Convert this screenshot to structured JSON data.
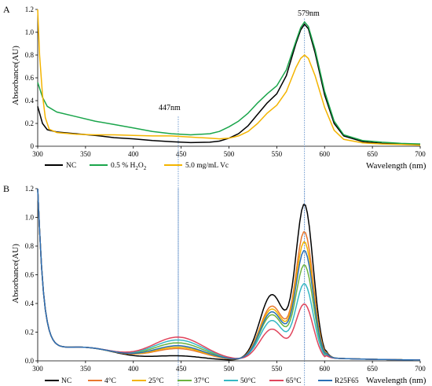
{
  "chart_data": [
    {
      "panel_label": "A",
      "type": "line",
      "xlabel": "Wavelength (nm)",
      "ylabel": "Absorbance(AU)",
      "xlim": [
        300,
        700
      ],
      "ylim": [
        0,
        1.2
      ],
      "xticks": [
        "300",
        "350",
        "400",
        "450",
        "500",
        "550",
        "600",
        "650",
        "700"
      ],
      "yticks": [
        "0",
        "0.2",
        "0.4",
        "0.6",
        "0.8",
        "1.0",
        "1.2"
      ],
      "grid": false,
      "legend_position": "bottom-left",
      "annotations": [
        {
          "text": "447nm",
          "x": 447,
          "y": 0.3
        },
        {
          "text": "579nm",
          "x": 579,
          "y": 1.14
        }
      ],
      "vlines": [
        447,
        579
      ],
      "series": [
        {
          "name": "NC",
          "legend_main": "NC",
          "legend_sub": "",
          "legend_tail": "",
          "color": "#000000",
          "points": [
            [
              300,
              0.35
            ],
            [
              305,
              0.2
            ],
            [
              310,
              0.145
            ],
            [
              320,
              0.125
            ],
            [
              340,
              0.11
            ],
            [
              360,
              0.095
            ],
            [
              380,
              0.075
            ],
            [
              400,
              0.065
            ],
            [
              420,
              0.05
            ],
            [
              440,
              0.04
            ],
            [
              460,
              0.032
            ],
            [
              480,
              0.035
            ],
            [
              490,
              0.045
            ],
            [
              500,
              0.07
            ],
            [
              510,
              0.11
            ],
            [
              520,
              0.18
            ],
            [
              530,
              0.28
            ],
            [
              540,
              0.38
            ],
            [
              550,
              0.46
            ],
            [
              560,
              0.62
            ],
            [
              570,
              0.9
            ],
            [
              575,
              1.02
            ],
            [
              579,
              1.07
            ],
            [
              583,
              1.03
            ],
            [
              590,
              0.82
            ],
            [
              600,
              0.45
            ],
            [
              610,
              0.2
            ],
            [
              620,
              0.09
            ],
            [
              640,
              0.04
            ],
            [
              660,
              0.025
            ],
            [
              680,
              0.02
            ],
            [
              700,
              0.015
            ]
          ]
        },
        {
          "name": "0.5 % H2O2",
          "legend_main": "0.5 %  H",
          "legend_sub": "2",
          "legend_tail": "O",
          "legend_sub2": "2",
          "color": "#1aa54b",
          "points": [
            [
              300,
              0.56
            ],
            [
              305,
              0.43
            ],
            [
              310,
              0.35
            ],
            [
              320,
              0.3
            ],
            [
              340,
              0.26
            ],
            [
              360,
              0.22
            ],
            [
              380,
              0.19
            ],
            [
              400,
              0.16
            ],
            [
              420,
              0.13
            ],
            [
              440,
              0.11
            ],
            [
              460,
              0.1
            ],
            [
              480,
              0.11
            ],
            [
              490,
              0.13
            ],
            [
              500,
              0.17
            ],
            [
              510,
              0.22
            ],
            [
              520,
              0.29
            ],
            [
              530,
              0.38
            ],
            [
              540,
              0.46
            ],
            [
              550,
              0.53
            ],
            [
              560,
              0.67
            ],
            [
              570,
              0.92
            ],
            [
              575,
              1.04
            ],
            [
              579,
              1.09
            ],
            [
              583,
              1.05
            ],
            [
              590,
              0.85
            ],
            [
              600,
              0.48
            ],
            [
              610,
              0.22
            ],
            [
              620,
              0.1
            ],
            [
              640,
              0.05
            ],
            [
              660,
              0.035
            ],
            [
              680,
              0.025
            ],
            [
              700,
              0.02
            ]
          ]
        },
        {
          "name": "5.0 mg/mL Vc",
          "legend_main": "5.0 mg/mL Vc",
          "legend_sub": "",
          "legend_tail": "",
          "color": "#f4b400",
          "points": [
            [
              300,
              1.2
            ],
            [
              302,
              0.8
            ],
            [
              305,
              0.45
            ],
            [
              308,
              0.25
            ],
            [
              312,
              0.15
            ],
            [
              320,
              0.12
            ],
            [
              340,
              0.105
            ],
            [
              360,
              0.1
            ],
            [
              380,
              0.1
            ],
            [
              400,
              0.095
            ],
            [
              420,
              0.09
            ],
            [
              440,
              0.09
            ],
            [
              460,
              0.08
            ],
            [
              480,
              0.07
            ],
            [
              490,
              0.065
            ],
            [
              500,
              0.07
            ],
            [
              510,
              0.09
            ],
            [
              520,
              0.13
            ],
            [
              530,
              0.2
            ],
            [
              540,
              0.29
            ],
            [
              550,
              0.36
            ],
            [
              560,
              0.48
            ],
            [
              570,
              0.69
            ],
            [
              575,
              0.77
            ],
            [
              579,
              0.8
            ],
            [
              583,
              0.77
            ],
            [
              590,
              0.62
            ],
            [
              600,
              0.34
            ],
            [
              610,
              0.14
            ],
            [
              620,
              0.06
            ],
            [
              640,
              0.03
            ],
            [
              660,
              0.02
            ],
            [
              680,
              0.015
            ],
            [
              700,
              0.01
            ]
          ]
        }
      ]
    },
    {
      "panel_label": "B",
      "type": "line",
      "xlabel": "Wavelength (nm)",
      "ylabel": "Absorbance(AU)",
      "xlim": [
        300,
        700
      ],
      "ylim": [
        0,
        1.2
      ],
      "xticks": [
        "300",
        "350",
        "400",
        "450",
        "500",
        "550",
        "600",
        "650",
        "700"
      ],
      "yticks": [
        "0.0",
        "0.2",
        "0.4",
        "0.6",
        "0.8",
        "1.0",
        "1.2"
      ],
      "grid": false,
      "legend_position": "bottom",
      "vlines": [
        447,
        579
      ],
      "series": [
        {
          "name": "NC",
          "color": "#000000",
          "peak": 1.08,
          "sh": 0.46,
          "vis": 0.03,
          "dip": 0.0,
          "tail": 0.33
        },
        {
          "name": "4°C",
          "color": "#e8782e",
          "peak": 0.89,
          "sh": 0.38,
          "vis": 0.08,
          "dip": 0.08,
          "tail": 0.26
        },
        {
          "name": "25°C",
          "color": "#f4b400",
          "peak": 0.82,
          "sh": 0.36,
          "vis": 0.09,
          "dip": 0.08,
          "tail": 0.25
        },
        {
          "name": "37°C",
          "color": "#6db33f",
          "peak": 0.66,
          "sh": 0.32,
          "vis": 0.12,
          "dip": 0.09,
          "tail": 0.22
        },
        {
          "name": "50°C",
          "color": "#35b8c4",
          "peak": 0.53,
          "sh": 0.28,
          "vis": 0.14,
          "dip": 0.09,
          "tail": 0.19
        },
        {
          "name": "65°C",
          "color": "#e0455c",
          "peak": 0.39,
          "sh": 0.22,
          "vis": 0.16,
          "dip": 0.1,
          "tail": 0.15
        },
        {
          "name": "R25F65",
          "color": "#2a6fb5",
          "peak": 0.76,
          "sh": 0.34,
          "vis": 0.1,
          "dip": 0.09,
          "tail": 0.24
        }
      ]
    }
  ]
}
